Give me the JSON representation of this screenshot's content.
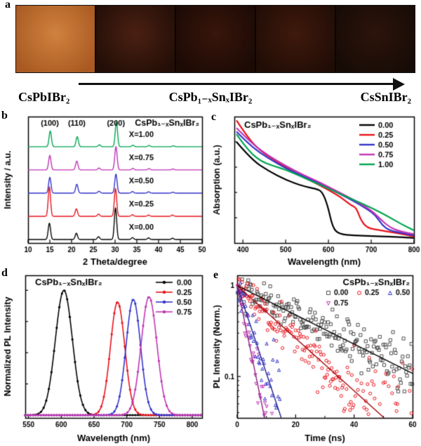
{
  "panel_letters": {
    "a": "a",
    "b": "b",
    "c": "c",
    "d": "d",
    "e": "e"
  },
  "panel_a": {
    "films": [
      {
        "inner": "#d0823f",
        "outer": "#a95a22"
      },
      {
        "inner": "#4a2012",
        "outer": "#230e07"
      },
      {
        "inner": "#38160b",
        "outer": "#1c0a05"
      },
      {
        "inner": "#40190c",
        "outer": "#200d06"
      },
      {
        "inner": "#2c140b",
        "outer": "#170b06"
      }
    ],
    "caption_left": "CsPbIBr₂",
    "caption_center": "CsPb₁₋ₓSnₓIBr₂",
    "caption_right": "CsSnIBr₂"
  },
  "chart_data": [
    {
      "id": "xrd",
      "panel": "b",
      "type": "line",
      "title": "CsPb₁₋ₓSnₓIBr₂",
      "xlabel": "2 Theta/degree",
      "ylabel": "Intensity / a.u.",
      "xlim": [
        10,
        50
      ],
      "xticks": [
        10,
        15,
        20,
        25,
        30,
        35,
        40,
        45,
        50
      ],
      "peak_labels": [
        {
          "text": "(100)",
          "x": 15.0
        },
        {
          "text": "(110)",
          "x": 21.2
        },
        {
          "text": "(200)",
          "x": 30.2
        }
      ],
      "series": [
        {
          "name": "X=0.00",
          "color": "#000000",
          "peaks": [
            [
              14.9,
              0.52
            ],
            [
              21.1,
              0.2
            ],
            [
              26.2,
              0.09
            ],
            [
              30.1,
              1.0
            ],
            [
              34.0,
              0.06
            ],
            [
              37.7,
              0.05
            ],
            [
              43.2,
              0.04
            ]
          ]
        },
        {
          "name": "X=0.25",
          "color": "#e8121a",
          "peaks": [
            [
              14.9,
              0.93
            ],
            [
              21.1,
              0.24
            ],
            [
              26.2,
              0.07
            ],
            [
              30.1,
              0.88
            ],
            [
              34.0,
              0.05
            ],
            [
              37.7,
              0.04
            ],
            [
              43.2,
              0.04
            ]
          ]
        },
        {
          "name": "X=0.50",
          "color": "#3333cc",
          "peaks": [
            [
              15.0,
              0.5
            ],
            [
              21.2,
              0.28
            ],
            [
              26.3,
              0.06
            ],
            [
              30.2,
              0.6
            ],
            [
              34.0,
              0.05
            ],
            [
              37.7,
              0.04
            ],
            [
              43.3,
              0.03
            ]
          ]
        },
        {
          "name": "X=0.75",
          "color": "#c034b5",
          "peaks": [
            [
              15.0,
              0.46
            ],
            [
              21.2,
              0.28
            ],
            [
              26.3,
              0.06
            ],
            [
              30.2,
              0.74
            ],
            [
              34.1,
              0.05
            ],
            [
              37.8,
              0.04
            ],
            [
              43.3,
              0.03
            ]
          ]
        },
        {
          "name": "X=1.00",
          "color": "#00a550",
          "peaks": [
            [
              15.1,
              0.5
            ],
            [
              21.3,
              0.32
            ],
            [
              26.4,
              0.06
            ],
            [
              30.3,
              0.78
            ],
            [
              34.1,
              0.05
            ],
            [
              37.8,
              0.04
            ],
            [
              43.4,
              0.03
            ]
          ]
        }
      ]
    },
    {
      "id": "absorption",
      "panel": "c",
      "type": "line",
      "title": "CsPb₁₋ₓSnₓIBr₂",
      "xlabel": "Wavelength (nm)",
      "ylabel": "Absorption (a.u.)",
      "xlim": [
        380,
        800
      ],
      "xticks": [
        400,
        500,
        600,
        700,
        800
      ],
      "legend_position": "top-right",
      "series": [
        {
          "name": "0.00",
          "color": "#000000",
          "points": [
            [
              385,
              0.8
            ],
            [
              420,
              0.66
            ],
            [
              460,
              0.57
            ],
            [
              500,
              0.5
            ],
            [
              540,
              0.45
            ],
            [
              570,
              0.43
            ],
            [
              585,
              0.41
            ],
            [
              598,
              0.3
            ],
            [
              610,
              0.12
            ],
            [
              625,
              0.07
            ],
            [
              660,
              0.06
            ],
            [
              700,
              0.055
            ],
            [
              750,
              0.05
            ],
            [
              800,
              0.04
            ]
          ]
        },
        {
          "name": "0.25",
          "color": "#e8121a",
          "points": [
            [
              385,
              0.97
            ],
            [
              410,
              0.84
            ],
            [
              440,
              0.73
            ],
            [
              480,
              0.64
            ],
            [
              520,
              0.56
            ],
            [
              560,
              0.49
            ],
            [
              600,
              0.42
            ],
            [
              630,
              0.36
            ],
            [
              652,
              0.3
            ],
            [
              665,
              0.28
            ],
            [
              676,
              0.18
            ],
            [
              690,
              0.12
            ],
            [
              720,
              0.1
            ],
            [
              760,
              0.08
            ],
            [
              800,
              0.05
            ]
          ]
        },
        {
          "name": "0.50",
          "color": "#3333cc",
          "points": [
            [
              385,
              0.88
            ],
            [
              420,
              0.76
            ],
            [
              460,
              0.67
            ],
            [
              500,
              0.59
            ],
            [
              540,
              0.53
            ],
            [
              580,
              0.47
            ],
            [
              620,
              0.4
            ],
            [
              660,
              0.33
            ],
            [
              690,
              0.27
            ],
            [
              710,
              0.22
            ],
            [
              726,
              0.14
            ],
            [
              742,
              0.1
            ],
            [
              770,
              0.08
            ],
            [
              800,
              0.06
            ]
          ]
        },
        {
          "name": "0.75",
          "color": "#c034b5",
          "points": [
            [
              385,
              0.91
            ],
            [
              420,
              0.79
            ],
            [
              460,
              0.69
            ],
            [
              500,
              0.61
            ],
            [
              540,
              0.54
            ],
            [
              580,
              0.48
            ],
            [
              620,
              0.41
            ],
            [
              660,
              0.34
            ],
            [
              700,
              0.26
            ],
            [
              724,
              0.18
            ],
            [
              745,
              0.12
            ],
            [
              770,
              0.09
            ],
            [
              800,
              0.07
            ]
          ]
        },
        {
          "name": "1.00",
          "color": "#00a550",
          "points": [
            [
              385,
              0.86
            ],
            [
              410,
              0.74
            ],
            [
              440,
              0.65
            ],
            [
              470,
              0.61
            ],
            [
              500,
              0.58
            ],
            [
              540,
              0.52
            ],
            [
              580,
              0.46
            ],
            [
              620,
              0.4
            ],
            [
              660,
              0.34
            ],
            [
              700,
              0.28
            ],
            [
              740,
              0.21
            ],
            [
              770,
              0.15
            ],
            [
              800,
              0.1
            ]
          ]
        }
      ]
    },
    {
      "id": "pl",
      "panel": "d",
      "type": "line",
      "title": "CsPb₁₋ₓSnₓIBr₂",
      "xlabel": "Wavelength (nm)",
      "ylabel": "Normalized PL Intensity",
      "xlim": [
        545,
        815
      ],
      "xticks": [
        550,
        600,
        650,
        700,
        750,
        800
      ],
      "series": [
        {
          "name": "0.00",
          "color": "#000000",
          "center": 604,
          "sigma": 13,
          "amp": 0.95
        },
        {
          "name": "0.25",
          "color": "#e8121a",
          "center": 686,
          "sigma": 11,
          "amp": 0.86
        },
        {
          "name": "0.50",
          "color": "#3333cc",
          "center": 710,
          "sigma": 11,
          "amp": 0.88
        },
        {
          "name": "0.75",
          "color": "#c034b5",
          "center": 734,
          "sigma": 12,
          "amp": 0.9
        }
      ]
    },
    {
      "id": "trpl",
      "panel": "e",
      "type": "scatter",
      "title": "CsPb₁₋ₓSnₓIBr₂",
      "xlabel": "Time (ns)",
      "ylabel": "PL Intensity (Norm.)",
      "xlim": [
        0,
        60
      ],
      "xticks": [
        0,
        20,
        40,
        60
      ],
      "xticks_minor": [
        10,
        30,
        50
      ],
      "ylog": true,
      "ylim": [
        0.035,
        1.3
      ],
      "yticks": [
        {
          "v": 1,
          "label": "1"
        },
        {
          "v": 0.1,
          "label": "0.1"
        }
      ],
      "series": [
        {
          "name": "0.00",
          "color": "#4d4d4d",
          "line_color": "#000000",
          "marker": "square",
          "tau": 27,
          "tmax": 60
        },
        {
          "name": "0.25",
          "color": "#e8121a",
          "line_color": "#a00007",
          "marker": "circle",
          "tau": 15,
          "tmax": 60
        },
        {
          "name": "0.50",
          "color": "#3333cc",
          "line_color": "#22228f",
          "marker": "triangle",
          "tau": 4.5,
          "tmax": 32
        },
        {
          "name": "0.75",
          "color": "#c034b5",
          "line_color": "#8d2480",
          "marker": "triangle-down",
          "tau": 2.8,
          "tmax": 22
        }
      ]
    }
  ]
}
